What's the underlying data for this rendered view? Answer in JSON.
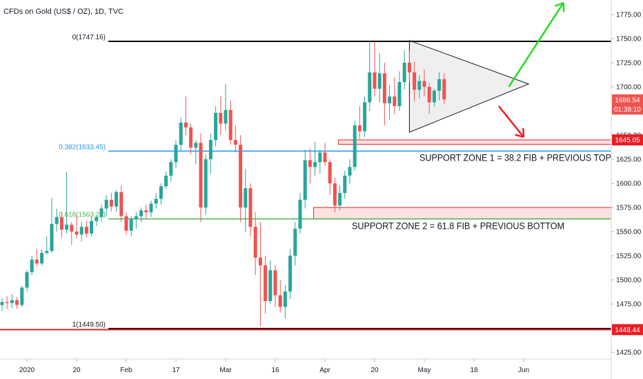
{
  "chart_data": {
    "type": "candlestick",
    "title": "CFDs on Gold (US$ / OZ), 1D, TVC",
    "y_axis": {
      "ylim": [
        1418,
        1790
      ],
      "ticks": [
        1425,
        1450,
        1475,
        1500,
        1525,
        1550,
        1575,
        1600,
        1625,
        1650,
        1675,
        1700,
        1725,
        1750,
        1775
      ],
      "tick_labels": [
        "1425.00",
        "1450.00",
        "1475.00",
        "1500.00",
        "1525.00",
        "1550.00",
        "1575.00",
        "1600.00",
        "1625.00",
        "1650.00",
        "1675.00",
        "1700.00",
        "1725.00",
        "1750.00",
        "1775.00"
      ],
      "position": "right"
    },
    "x_axis": {
      "tick_labels": [
        "2020",
        "20",
        "Feb",
        "17",
        "Mar",
        "16",
        "Apr",
        "20",
        "May",
        "18",
        "Jun"
      ],
      "tick_index": [
        5,
        15,
        25,
        35,
        45,
        55,
        65,
        75,
        85,
        95,
        105
      ]
    },
    "grid": false,
    "up_color": "#26a69a",
    "down_color": "#ef5350",
    "candles": [
      {
        "o": 1474,
        "h": 1481,
        "l": 1468,
        "c": 1477
      },
      {
        "o": 1477,
        "h": 1483,
        "l": 1470,
        "c": 1476
      },
      {
        "o": 1476,
        "h": 1485,
        "l": 1471,
        "c": 1479
      },
      {
        "o": 1479,
        "h": 1482,
        "l": 1470,
        "c": 1474
      },
      {
        "o": 1474,
        "h": 1494,
        "l": 1472,
        "c": 1492
      },
      {
        "o": 1492,
        "h": 1510,
        "l": 1488,
        "c": 1508
      },
      {
        "o": 1508,
        "h": 1525,
        "l": 1505,
        "c": 1521
      },
      {
        "o": 1521,
        "h": 1532,
        "l": 1514,
        "c": 1517
      },
      {
        "o": 1517,
        "h": 1532,
        "l": 1515,
        "c": 1528
      },
      {
        "o": 1528,
        "h": 1545,
        "l": 1526,
        "c": 1530
      },
      {
        "o": 1530,
        "h": 1585,
        "l": 1528,
        "c": 1558
      },
      {
        "o": 1558,
        "h": 1574,
        "l": 1550,
        "c": 1565
      },
      {
        "o": 1565,
        "h": 1570,
        "l": 1544,
        "c": 1552
      },
      {
        "o": 1552,
        "h": 1612,
        "l": 1548,
        "c": 1557
      },
      {
        "o": 1557,
        "h": 1560,
        "l": 1536,
        "c": 1550
      },
      {
        "o": 1550,
        "h": 1566,
        "l": 1543,
        "c": 1547
      },
      {
        "o": 1547,
        "h": 1560,
        "l": 1540,
        "c": 1555
      },
      {
        "o": 1555,
        "h": 1561,
        "l": 1544,
        "c": 1548
      },
      {
        "o": 1548,
        "h": 1566,
        "l": 1545,
        "c": 1561
      },
      {
        "o": 1561,
        "h": 1567,
        "l": 1556,
        "c": 1565
      },
      {
        "o": 1565,
        "h": 1578,
        "l": 1560,
        "c": 1574
      },
      {
        "o": 1574,
        "h": 1588,
        "l": 1566,
        "c": 1583
      },
      {
        "o": 1583,
        "h": 1590,
        "l": 1571,
        "c": 1576
      },
      {
        "o": 1576,
        "h": 1593,
        "l": 1570,
        "c": 1591
      },
      {
        "o": 1591,
        "h": 1598,
        "l": 1560,
        "c": 1566
      },
      {
        "o": 1566,
        "h": 1570,
        "l": 1547,
        "c": 1551
      },
      {
        "o": 1551,
        "h": 1566,
        "l": 1545,
        "c": 1563
      },
      {
        "o": 1563,
        "h": 1570,
        "l": 1553,
        "c": 1566
      },
      {
        "o": 1566,
        "h": 1575,
        "l": 1560,
        "c": 1572
      },
      {
        "o": 1572,
        "h": 1578,
        "l": 1563,
        "c": 1570
      },
      {
        "o": 1570,
        "h": 1582,
        "l": 1565,
        "c": 1579
      },
      {
        "o": 1579,
        "h": 1590,
        "l": 1574,
        "c": 1584
      },
      {
        "o": 1584,
        "h": 1600,
        "l": 1578,
        "c": 1597
      },
      {
        "o": 1597,
        "h": 1612,
        "l": 1594,
        "c": 1608
      },
      {
        "o": 1608,
        "h": 1625,
        "l": 1602,
        "c": 1622
      },
      {
        "o": 1622,
        "h": 1645,
        "l": 1616,
        "c": 1640
      },
      {
        "o": 1640,
        "h": 1668,
        "l": 1634,
        "c": 1663
      },
      {
        "o": 1663,
        "h": 1690,
        "l": 1650,
        "c": 1658
      },
      {
        "o": 1658,
        "h": 1662,
        "l": 1630,
        "c": 1637
      },
      {
        "o": 1637,
        "h": 1645,
        "l": 1620,
        "c": 1642
      },
      {
        "o": 1642,
        "h": 1652,
        "l": 1560,
        "c": 1575
      },
      {
        "o": 1575,
        "h": 1630,
        "l": 1568,
        "c": 1625
      },
      {
        "o": 1625,
        "h": 1652,
        "l": 1610,
        "c": 1645
      },
      {
        "o": 1645,
        "h": 1680,
        "l": 1638,
        "c": 1673
      },
      {
        "o": 1673,
        "h": 1690,
        "l": 1650,
        "c": 1662
      },
      {
        "o": 1662,
        "h": 1703,
        "l": 1655,
        "c": 1676
      },
      {
        "o": 1676,
        "h": 1686,
        "l": 1640,
        "c": 1645
      },
      {
        "o": 1645,
        "h": 1660,
        "l": 1632,
        "c": 1640
      },
      {
        "o": 1640,
        "h": 1650,
        "l": 1560,
        "c": 1575
      },
      {
        "o": 1575,
        "h": 1615,
        "l": 1550,
        "c": 1595
      },
      {
        "o": 1595,
        "h": 1600,
        "l": 1545,
        "c": 1555
      },
      {
        "o": 1555,
        "h": 1570,
        "l": 1505,
        "c": 1523
      },
      {
        "o": 1523,
        "h": 1560,
        "l": 1452,
        "c": 1515
      },
      {
        "o": 1515,
        "h": 1525,
        "l": 1465,
        "c": 1478
      },
      {
        "o": 1478,
        "h": 1520,
        "l": 1475,
        "c": 1510
      },
      {
        "o": 1510,
        "h": 1515,
        "l": 1472,
        "c": 1484
      },
      {
        "o": 1484,
        "h": 1500,
        "l": 1466,
        "c": 1472
      },
      {
        "o": 1472,
        "h": 1495,
        "l": 1460,
        "c": 1488
      },
      {
        "o": 1488,
        "h": 1532,
        "l": 1480,
        "c": 1525
      },
      {
        "o": 1525,
        "h": 1560,
        "l": 1515,
        "c": 1553
      },
      {
        "o": 1553,
        "h": 1590,
        "l": 1548,
        "c": 1583
      },
      {
        "o": 1583,
        "h": 1635,
        "l": 1574,
        "c": 1624
      },
      {
        "o": 1624,
        "h": 1636,
        "l": 1600,
        "c": 1617
      },
      {
        "o": 1617,
        "h": 1643,
        "l": 1608,
        "c": 1622
      },
      {
        "o": 1622,
        "h": 1635,
        "l": 1610,
        "c": 1632
      },
      {
        "o": 1632,
        "h": 1642,
        "l": 1618,
        "c": 1622
      },
      {
        "o": 1622,
        "h": 1625,
        "l": 1588,
        "c": 1600
      },
      {
        "o": 1600,
        "h": 1606,
        "l": 1570,
        "c": 1577
      },
      {
        "o": 1577,
        "h": 1598,
        "l": 1572,
        "c": 1590
      },
      {
        "o": 1590,
        "h": 1613,
        "l": 1584,
        "c": 1608
      },
      {
        "o": 1608,
        "h": 1625,
        "l": 1600,
        "c": 1617
      },
      {
        "o": 1617,
        "h": 1665,
        "l": 1613,
        "c": 1660
      },
      {
        "o": 1660,
        "h": 1680,
        "l": 1646,
        "c": 1654
      },
      {
        "o": 1654,
        "h": 1690,
        "l": 1648,
        "c": 1684
      },
      {
        "o": 1684,
        "h": 1748,
        "l": 1675,
        "c": 1715
      },
      {
        "o": 1715,
        "h": 1747,
        "l": 1690,
        "c": 1698
      },
      {
        "o": 1698,
        "h": 1735,
        "l": 1684,
        "c": 1714
      },
      {
        "o": 1714,
        "h": 1725,
        "l": 1660,
        "c": 1683
      },
      {
        "o": 1683,
        "h": 1702,
        "l": 1666,
        "c": 1690
      },
      {
        "o": 1690,
        "h": 1710,
        "l": 1672,
        "c": 1680
      },
      {
        "o": 1680,
        "h": 1716,
        "l": 1675,
        "c": 1705
      },
      {
        "o": 1705,
        "h": 1738,
        "l": 1697,
        "c": 1725
      },
      {
        "o": 1725,
        "h": 1737,
        "l": 1705,
        "c": 1715
      },
      {
        "o": 1715,
        "h": 1726,
        "l": 1685,
        "c": 1697
      },
      {
        "o": 1697,
        "h": 1712,
        "l": 1688,
        "c": 1706
      },
      {
        "o": 1706,
        "h": 1718,
        "l": 1690,
        "c": 1700
      },
      {
        "o": 1700,
        "h": 1704,
        "l": 1672,
        "c": 1684
      },
      {
        "o": 1684,
        "h": 1698,
        "l": 1680,
        "c": 1696
      },
      {
        "o": 1696,
        "h": 1715,
        "l": 1686,
        "c": 1708
      },
      {
        "o": 1708,
        "h": 1714,
        "l": 1682,
        "c": 1687
      }
    ],
    "horizontal_lines": [
      {
        "name": "fib-0",
        "value": 1747.16,
        "label": "0(1747.16)",
        "color": "#000000",
        "label_color": "#131722",
        "width": 2
      },
      {
        "name": "fib-0382",
        "value": 1633.45,
        "label": "0.382(1633.45)",
        "color": "#2196f3",
        "label_color": "#2196f3",
        "width": 1.5
      },
      {
        "name": "fib-0618",
        "value": 1563.21,
        "label": "0.618(1563.21)",
        "color": "#4caf50",
        "label_color": "#4caf50",
        "width": 1.5
      },
      {
        "name": "fib-1",
        "value": 1449.5,
        "label": "1(1449.50)",
        "color": "#000000",
        "label_color": "#131722",
        "width": 2
      },
      {
        "name": "red-support",
        "value": 1448.44,
        "label": "",
        "color": "#e91e25",
        "label_color": "#e91e25",
        "width": 2
      }
    ],
    "price_tags": [
      {
        "label": "1686.54",
        "value": 1686.54,
        "bg": "#ef5350"
      },
      {
        "label": "01:38:10",
        "value": 1677,
        "bg": "#ef5350"
      },
      {
        "label": "1645.05",
        "value": 1645.05,
        "bg": "#e91e25"
      },
      {
        "label": "1448.44",
        "value": 1448.44,
        "bg": "#e91e25"
      }
    ],
    "zones": [
      {
        "name": "support-zone-1",
        "top": 1645.05,
        "bottom": 1640.5,
        "from_index": 68,
        "text": "SUPPORT ZONE 1 = 38.2 FIB + PREVIOUS TOP"
      },
      {
        "name": "support-zone-2",
        "top": 1575,
        "bottom": 1563.21,
        "from_index": 63,
        "text": "SUPPORT ZONE 2 = 61.8 FIB + PREVIOUS BOTTOM"
      }
    ],
    "triangle": {
      "points": [
        {
          "i": 82,
          "v": 1748
        },
        {
          "i": 82,
          "v": 1653
        },
        {
          "i": 106,
          "v": 1703
        }
      ]
    },
    "arrows": [
      {
        "name": "up-arrow",
        "color": "#22dd22",
        "from": {
          "i": 102,
          "v": 1700
        },
        "to": {
          "i": 113,
          "v": 1787
        }
      },
      {
        "name": "down-arrow",
        "color": "#ee1c24",
        "from": {
          "i": 100,
          "v": 1680
        },
        "to": {
          "i": 105,
          "v": 1648
        }
      }
    ]
  }
}
